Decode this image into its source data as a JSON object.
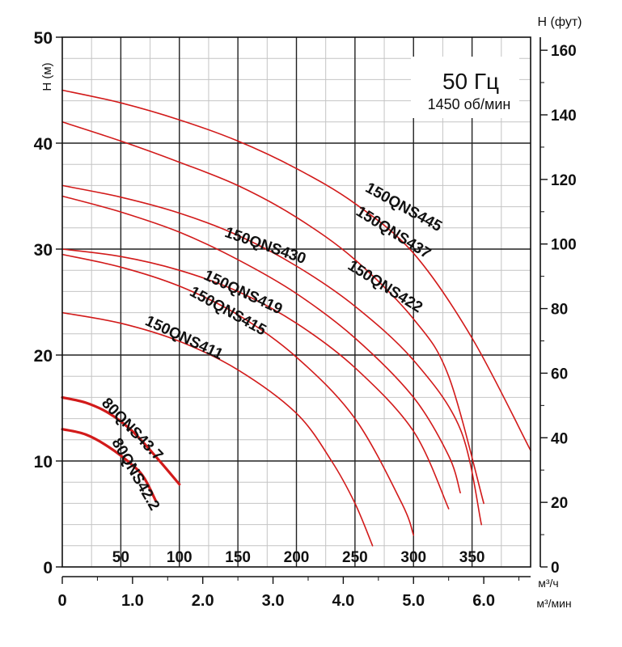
{
  "chart_data": {
    "type": "line",
    "frequency_label": "50 Гц",
    "speed_label": "1450 об/мин",
    "ylabel_left": "H (м)",
    "ylabel_right": "H (фут)",
    "xunit_top": "м³/ч",
    "xunit_bottom": "м³/мин",
    "y_left_range": [
      0,
      50
    ],
    "y_left_ticks": [
      0,
      10,
      20,
      30,
      40,
      50
    ],
    "y_right_ticks": [
      0,
      20,
      40,
      60,
      80,
      100,
      120,
      140,
      160
    ],
    "x_range_m3h": [
      0,
      400
    ],
    "x_ticks_m3h": [
      50,
      100,
      150,
      200,
      250,
      300,
      350
    ],
    "x_ticks_m3min": [
      "0",
      "1.0",
      "2.0",
      "3.0",
      "4.0",
      "5.0",
      "6.0"
    ],
    "grid": true,
    "series": [
      {
        "name": "150QNS445",
        "points": [
          [
            0,
            45
          ],
          [
            50,
            43.8
          ],
          [
            100,
            42.2
          ],
          [
            150,
            40.2
          ],
          [
            200,
            37.6
          ],
          [
            250,
            34.3
          ],
          [
            300,
            29.6
          ],
          [
            350,
            21.6
          ],
          [
            400,
            11.0
          ]
        ]
      },
      {
        "name": "150QNS437",
        "points": [
          [
            0,
            42
          ],
          [
            50,
            40.2
          ],
          [
            100,
            38.2
          ],
          [
            150,
            36.0
          ],
          [
            200,
            33.0
          ],
          [
            250,
            29.0
          ],
          [
            300,
            23.4
          ],
          [
            330,
            18.0
          ],
          [
            360,
            6.0
          ]
        ]
      },
      {
        "name": "150QNS430",
        "points": [
          [
            0,
            36
          ],
          [
            50,
            34.9
          ],
          [
            100,
            33.4
          ],
          [
            150,
            31.3
          ],
          [
            200,
            28.4
          ],
          [
            250,
            24.6
          ],
          [
            300,
            19.5
          ],
          [
            340,
            13.0
          ],
          [
            358,
            4.0
          ]
        ]
      },
      {
        "name": "150QNS422",
        "points": [
          [
            0,
            35
          ],
          [
            50,
            33.5
          ],
          [
            100,
            31.6
          ],
          [
            150,
            29.0
          ],
          [
            200,
            25.8
          ],
          [
            250,
            21.6
          ],
          [
            300,
            16.0
          ],
          [
            330,
            10.5
          ],
          [
            340,
            7.0
          ]
        ]
      },
      {
        "name": "150QNS419",
        "points": [
          [
            0,
            30
          ],
          [
            50,
            29.3
          ],
          [
            100,
            28.0
          ],
          [
            150,
            26.0
          ],
          [
            200,
            23.0
          ],
          [
            250,
            18.8
          ],
          [
            300,
            12.8
          ],
          [
            330,
            5.5
          ]
        ]
      },
      {
        "name": "150QNS415",
        "points": [
          [
            0,
            29.5
          ],
          [
            50,
            28.3
          ],
          [
            100,
            26.5
          ],
          [
            150,
            23.8
          ],
          [
            200,
            19.8
          ],
          [
            250,
            14.0
          ],
          [
            290,
            6.0
          ],
          [
            300,
            3.0
          ]
        ]
      },
      {
        "name": "150QNS411",
        "points": [
          [
            0,
            24
          ],
          [
            50,
            23.0
          ],
          [
            100,
            21.3
          ],
          [
            150,
            18.6
          ],
          [
            200,
            14.5
          ],
          [
            230,
            10.0
          ],
          [
            250,
            6.0
          ],
          [
            265,
            2.0
          ]
        ]
      },
      {
        "name": "80QNS43.7",
        "points": [
          [
            0,
            16
          ],
          [
            20,
            15.5
          ],
          [
            40,
            14.5
          ],
          [
            60,
            12.8
          ],
          [
            80,
            10.4
          ],
          [
            100,
            7.8
          ]
        ]
      },
      {
        "name": "80QNS42.2",
        "points": [
          [
            0,
            13
          ],
          [
            20,
            12.5
          ],
          [
            40,
            11.3
          ],
          [
            60,
            9.6
          ],
          [
            70,
            8.4
          ],
          [
            80,
            6.2
          ]
        ]
      }
    ],
    "curve_labels": [
      {
        "text": "150QNS445",
        "x": 258,
        "y": 35.5,
        "angle": 29
      },
      {
        "text": "150QNS437",
        "x": 250,
        "y": 33.3,
        "angle": 32
      },
      {
        "text": "150QNS430",
        "x": 138,
        "y": 31.2,
        "angle": 19
      },
      {
        "text": "150QNS422",
        "x": 243,
        "y": 28.2,
        "angle": 32
      },
      {
        "text": "150QNS419",
        "x": 120,
        "y": 27.2,
        "angle": 25
      },
      {
        "text": "150QNS415",
        "x": 108,
        "y": 25.7,
        "angle": 29
      },
      {
        "text": "150QNS411",
        "x": 70,
        "y": 22.9,
        "angle": 25
      },
      {
        "text": "80QNS43.7",
        "x": 33,
        "y": 15.4,
        "angle": 46
      },
      {
        "text": "80QNS42.2",
        "x": 42,
        "y": 11.8,
        "angle": 60
      }
    ]
  }
}
